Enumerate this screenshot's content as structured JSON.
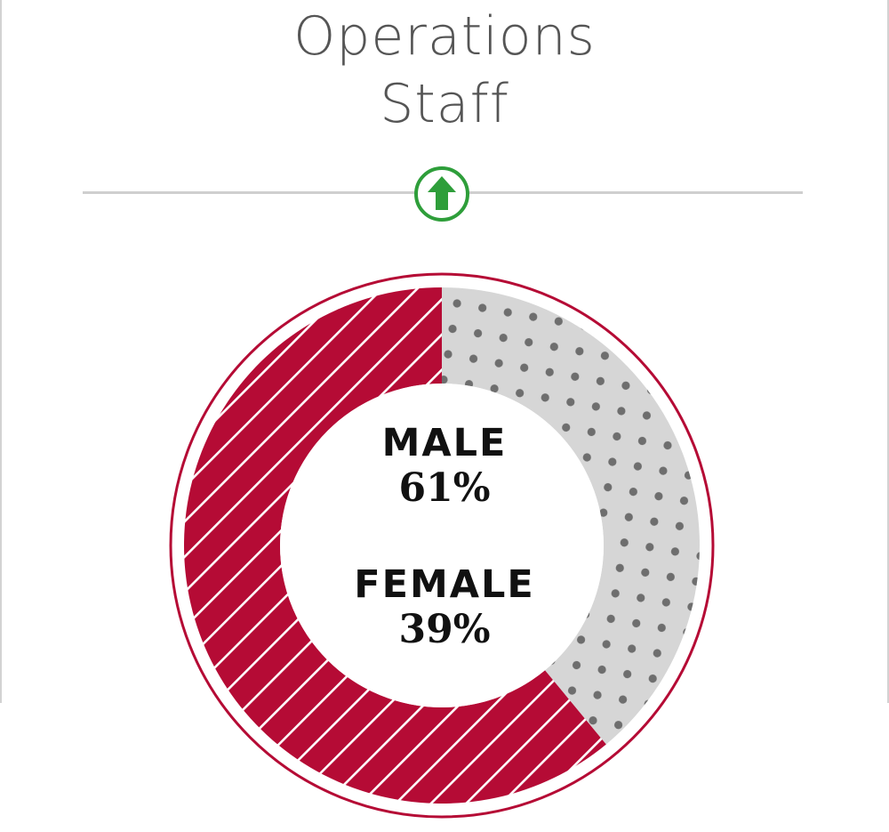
{
  "header": {
    "title_line1": "Operations",
    "title_line2": "Staff"
  },
  "trend_indicator": {
    "icon": "up-arrow-icon",
    "color": "#2e9e3a"
  },
  "chart_data": {
    "type": "pie",
    "style": "donut",
    "categories": [
      "MALE",
      "FEMALE"
    ],
    "values": [
      61,
      39
    ],
    "value_labels": [
      "61%",
      "39%"
    ],
    "colors": {
      "MALE": "#b50b35",
      "FEMALE": "#d6d6d6",
      "female_dots": "#6e6e6e",
      "male_hatch": "#ffffff",
      "outer_ring": "#b50b35"
    },
    "patterns": {
      "MALE": "diagonal-stripes",
      "FEMALE": "dots"
    },
    "start": "12 o'clock",
    "direction": "clockwise",
    "first_slice": "FEMALE",
    "legend": "center"
  }
}
